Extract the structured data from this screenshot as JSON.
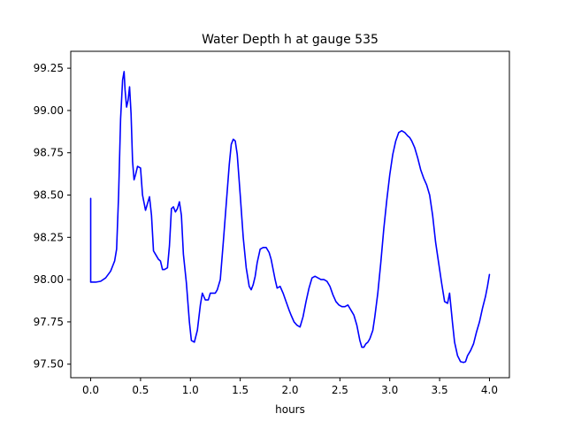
{
  "chart_data": {
    "type": "line",
    "title": "Water Depth h at gauge 535",
    "xlabel": "hours",
    "ylabel": "",
    "xlim": [
      -0.2,
      4.2
    ],
    "ylim": [
      97.42,
      99.35
    ],
    "x_ticks": [
      0.0,
      0.5,
      1.0,
      1.5,
      2.0,
      2.5,
      3.0,
      3.5,
      4.0
    ],
    "x_tick_labels": [
      "0.0",
      "0.5",
      "1.0",
      "1.5",
      "2.0",
      "2.5",
      "3.0",
      "3.5",
      "4.0"
    ],
    "y_ticks": [
      97.5,
      97.75,
      98.0,
      98.25,
      98.5,
      98.75,
      99.0,
      99.25
    ],
    "y_tick_labels": [
      "97.50",
      "97.75",
      "98.00",
      "98.25",
      "98.50",
      "98.75",
      "99.00",
      "99.25"
    ],
    "grid": false,
    "legend": "none",
    "series": [
      {
        "color": "#0000ff",
        "x": [
          0.0,
          0.0,
          0.01,
          0.05,
          0.1,
          0.15,
          0.2,
          0.24,
          0.26,
          0.28,
          0.3,
          0.32,
          0.335,
          0.345,
          0.36,
          0.375,
          0.39,
          0.405,
          0.42,
          0.435,
          0.45,
          0.47,
          0.5,
          0.52,
          0.55,
          0.57,
          0.59,
          0.61,
          0.63,
          0.65,
          0.68,
          0.7,
          0.72,
          0.74,
          0.77,
          0.79,
          0.81,
          0.83,
          0.85,
          0.87,
          0.89,
          0.91,
          0.93,
          0.96,
          0.99,
          1.01,
          1.04,
          1.07,
          1.1,
          1.12,
          1.15,
          1.18,
          1.2,
          1.22,
          1.25,
          1.27,
          1.3,
          1.33,
          1.36,
          1.39,
          1.41,
          1.43,
          1.45,
          1.47,
          1.5,
          1.53,
          1.56,
          1.59,
          1.61,
          1.63,
          1.65,
          1.67,
          1.7,
          1.73,
          1.76,
          1.79,
          1.81,
          1.83,
          1.85,
          1.87,
          1.9,
          1.93,
          1.96,
          1.99,
          2.01,
          2.04,
          2.07,
          2.1,
          2.13,
          2.16,
          2.19,
          2.22,
          2.25,
          2.28,
          2.31,
          2.34,
          2.37,
          2.4,
          2.43,
          2.46,
          2.49,
          2.52,
          2.55,
          2.58,
          2.6,
          2.62,
          2.64,
          2.67,
          2.7,
          2.72,
          2.74,
          2.76,
          2.78,
          2.8,
          2.83,
          2.85,
          2.88,
          2.91,
          2.94,
          2.97,
          3.0,
          3.03,
          3.06,
          3.09,
          3.12,
          3.15,
          3.18,
          3.2,
          3.22,
          3.25,
          3.28,
          3.31,
          3.34,
          3.37,
          3.4,
          3.43,
          3.46,
          3.49,
          3.52,
          3.55,
          3.58,
          3.6,
          3.62,
          3.63,
          3.65,
          3.68,
          3.71,
          3.74,
          3.76,
          3.78,
          3.81,
          3.84,
          3.87,
          3.9,
          3.93,
          3.96,
          3.98,
          4.0
        ],
        "y": [
          98.48,
          97.985,
          97.985,
          97.985,
          97.99,
          98.01,
          98.05,
          98.11,
          98.18,
          98.5,
          98.95,
          99.18,
          99.23,
          99.12,
          99.02,
          99.06,
          99.14,
          98.98,
          98.7,
          98.59,
          98.62,
          98.67,
          98.66,
          98.5,
          98.41,
          98.45,
          98.49,
          98.38,
          98.17,
          98.15,
          98.12,
          98.11,
          98.06,
          98.06,
          98.07,
          98.2,
          98.42,
          98.43,
          98.4,
          98.42,
          98.46,
          98.38,
          98.15,
          97.98,
          97.75,
          97.64,
          97.63,
          97.7,
          97.85,
          97.92,
          97.88,
          97.88,
          97.92,
          97.92,
          97.92,
          97.94,
          98.0,
          98.22,
          98.45,
          98.68,
          98.8,
          98.83,
          98.82,
          98.74,
          98.5,
          98.25,
          98.07,
          97.96,
          97.94,
          97.97,
          98.02,
          98.1,
          98.18,
          98.19,
          98.19,
          98.16,
          98.12,
          98.06,
          98.0,
          97.95,
          97.96,
          97.92,
          97.87,
          97.82,
          97.79,
          97.75,
          97.73,
          97.72,
          97.78,
          97.87,
          97.95,
          98.01,
          98.02,
          98.01,
          98.0,
          98.0,
          97.99,
          97.96,
          97.91,
          97.87,
          97.85,
          97.84,
          97.84,
          97.85,
          97.83,
          97.81,
          97.79,
          97.73,
          97.64,
          97.6,
          97.6,
          97.62,
          97.63,
          97.65,
          97.7,
          97.78,
          97.92,
          98.1,
          98.3,
          98.47,
          98.62,
          98.74,
          98.82,
          98.87,
          98.88,
          98.87,
          98.85,
          98.84,
          98.82,
          98.78,
          98.72,
          98.65,
          98.6,
          98.56,
          98.5,
          98.38,
          98.22,
          98.1,
          97.98,
          97.87,
          97.86,
          97.92,
          97.8,
          97.74,
          97.63,
          97.55,
          97.515,
          97.51,
          97.515,
          97.55,
          97.58,
          97.62,
          97.69,
          97.75,
          97.83,
          97.9,
          97.96,
          98.03
        ]
      }
    ]
  }
}
